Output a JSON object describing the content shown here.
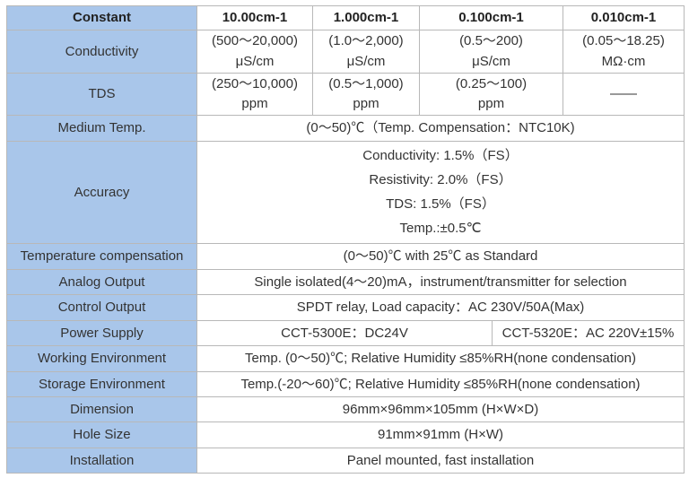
{
  "table": {
    "header": [
      "Constant",
      "10.00cm-1",
      "1.000cm-1",
      "0.100cm-1",
      "0.010cm-1"
    ],
    "rows": [
      {
        "label": "Conductivity",
        "cells": [
          [
            "(500～20,000)",
            "μS/cm"
          ],
          [
            "(1.0～2,000)",
            "μS/cm"
          ],
          [
            "(0.5～200)",
            "μS/cm"
          ],
          [
            "(0.05～18.25)",
            "MΩ·cm"
          ]
        ]
      },
      {
        "label": "TDS",
        "cells": [
          [
            "(250～10,000)",
            "ppm"
          ],
          [
            "(0.5～1,000)",
            "ppm"
          ],
          [
            "(0.25～100)",
            "ppm"
          ],
          [
            "——"
          ]
        ]
      },
      {
        "label": "Medium Temp.",
        "cells": [
          [
            "(0～50)℃（Temp. Compensation：NTC10K)"
          ]
        ]
      },
      {
        "label": "Accuracy",
        "cells": [
          [
            "Conductivity: 1.5%（FS）",
            "Resistivity: 2.0%（FS）",
            "TDS: 1.5%（FS）",
            "Temp.:±0.5℃"
          ]
        ]
      },
      {
        "label": "Temperature compensation",
        "cells": [
          [
            "(0～50)℃ with 25℃ as Standard"
          ]
        ]
      },
      {
        "label": "Analog Output",
        "cells": [
          [
            "Single isolated(4～20)mA，instrument/transmitter for selection"
          ]
        ]
      },
      {
        "label": "Control Output",
        "cells": [
          [
            "SPDT relay, Load capacity：AC 230V/50A(Max)"
          ]
        ]
      },
      {
        "label": "Power Supply",
        "cells": [
          [
            "CCT-5300E：DC24V"
          ],
          [
            "CCT-5320E：AC 220V±15%"
          ]
        ]
      },
      {
        "label": "Working Environment",
        "cells": [
          [
            "Temp. (0～50)℃; Relative Humidity ≤85%RH(none condensation)"
          ]
        ]
      },
      {
        "label": "Storage Environment",
        "cells": [
          [
            "Temp.(-20～60)℃; Relative Humidity ≤85%RH(none condensation)"
          ]
        ]
      },
      {
        "label": "Dimension",
        "cells": [
          [
            "96mm×96mm×105mm (H×W×D)"
          ]
        ]
      },
      {
        "label": "Hole Size",
        "cells": [
          [
            "91mm×91mm (H×W)"
          ]
        ]
      },
      {
        "label": "Installation",
        "cells": [
          [
            "Panel mounted, fast installation"
          ]
        ]
      }
    ]
  }
}
